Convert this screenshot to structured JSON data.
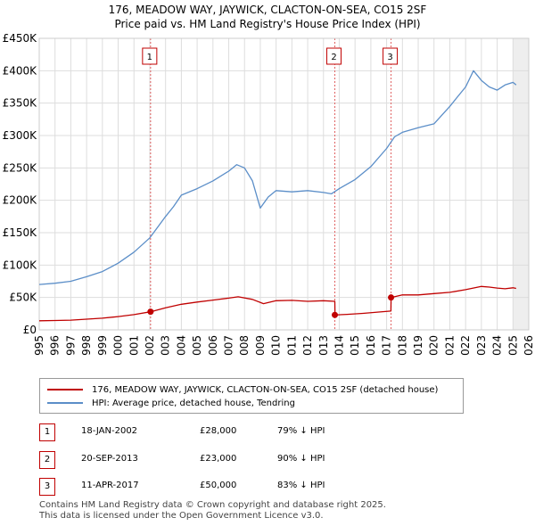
{
  "chart_data": {
    "type": "line",
    "title": "176, MEADOW WAY, JAYWICK, CLACTON-ON-SEA, CO15 2SF",
    "subtitle": "Price paid vs. HM Land Registry's House Price Index (HPI)",
    "x_range": [
      1995,
      2026
    ],
    "y_range": [
      0,
      450000
    ],
    "x_ticks": [
      "1995",
      "1996",
      "1997",
      "1998",
      "1999",
      "2000",
      "2001",
      "2002",
      "2003",
      "2004",
      "2005",
      "2006",
      "2007",
      "2008",
      "2009",
      "2010",
      "2011",
      "2012",
      "2013",
      "2014",
      "2015",
      "2016",
      "2017",
      "2018",
      "2019",
      "2020",
      "2021",
      "2022",
      "2023",
      "2024",
      "2025",
      "2026"
    ],
    "y_ticks": [
      {
        "value": 0,
        "label": "£0"
      },
      {
        "value": 50000,
        "label": "£50K"
      },
      {
        "value": 100000,
        "label": "£100K"
      },
      {
        "value": 150000,
        "label": "£150K"
      },
      {
        "value": 200000,
        "label": "£200K"
      },
      {
        "value": 250000,
        "label": "£250K"
      },
      {
        "value": 300000,
        "label": "£300K"
      },
      {
        "value": 350000,
        "label": "£350K"
      },
      {
        "value": 400000,
        "label": "£400K"
      },
      {
        "value": 450000,
        "label": "£450K"
      }
    ],
    "grid": true,
    "series": [
      {
        "name": "176, MEADOW WAY, JAYWICK, CLACTON-ON-SEA, CO15 2SF (detached house)",
        "color": "#c00000",
        "points": [
          [
            1995.0,
            14000
          ],
          [
            1996.0,
            14500
          ],
          [
            1997.0,
            15000
          ],
          [
            1998.0,
            16500
          ],
          [
            1999.0,
            18000
          ],
          [
            2000.0,
            20500
          ],
          [
            2001.0,
            23500
          ],
          [
            2002.05,
            28000
          ],
          [
            2003.0,
            34000
          ],
          [
            2004.0,
            39500
          ],
          [
            2005.0,
            43000
          ],
          [
            2006.0,
            46000
          ],
          [
            2007.0,
            49000
          ],
          [
            2007.6,
            51000
          ],
          [
            2008.5,
            47000
          ],
          [
            2009.2,
            40500
          ],
          [
            2010.0,
            45000
          ],
          [
            2011.0,
            45500
          ],
          [
            2012.0,
            44000
          ],
          [
            2013.0,
            45000
          ],
          [
            2013.72,
            44000
          ],
          [
            2013.73,
            23000
          ],
          [
            2014.5,
            24000
          ],
          [
            2015.5,
            25500
          ],
          [
            2016.5,
            27500
          ],
          [
            2017.27,
            29000
          ],
          [
            2017.28,
            50000
          ],
          [
            2018.0,
            54000
          ],
          [
            2019.0,
            54000
          ],
          [
            2020.0,
            56000
          ],
          [
            2021.0,
            58000
          ],
          [
            2022.0,
            62000
          ],
          [
            2023.0,
            67000
          ],
          [
            2023.5,
            66000
          ],
          [
            2024.0,
            64500
          ],
          [
            2024.5,
            63500
          ],
          [
            2025.0,
            65000
          ],
          [
            2025.2,
            64000
          ]
        ]
      },
      {
        "name": "HPI: Average price, detached house, Tendring",
        "color": "#5b8ec8",
        "points": [
          [
            1995.0,
            70000
          ],
          [
            1996.0,
            72000
          ],
          [
            1997.0,
            75000
          ],
          [
            1998.0,
            82000
          ],
          [
            1999.0,
            90000
          ],
          [
            2000.0,
            103000
          ],
          [
            2001.0,
            120000
          ],
          [
            2002.0,
            142000
          ],
          [
            2003.0,
            175000
          ],
          [
            2003.5,
            190000
          ],
          [
            2004.0,
            208000
          ],
          [
            2005.0,
            218000
          ],
          [
            2006.0,
            230000
          ],
          [
            2007.0,
            245000
          ],
          [
            2007.5,
            255000
          ],
          [
            2008.0,
            250000
          ],
          [
            2008.5,
            230000
          ],
          [
            2009.0,
            188000
          ],
          [
            2009.5,
            205000
          ],
          [
            2010.0,
            215000
          ],
          [
            2011.0,
            213000
          ],
          [
            2012.0,
            215000
          ],
          [
            2013.0,
            212000
          ],
          [
            2013.5,
            210000
          ],
          [
            2014.0,
            218000
          ],
          [
            2015.0,
            232000
          ],
          [
            2016.0,
            252000
          ],
          [
            2017.0,
            280000
          ],
          [
            2017.5,
            298000
          ],
          [
            2018.0,
            305000
          ],
          [
            2019.0,
            312000
          ],
          [
            2020.0,
            318000
          ],
          [
            2021.0,
            345000
          ],
          [
            2021.5,
            360000
          ],
          [
            2022.0,
            375000
          ],
          [
            2022.5,
            400000
          ],
          [
            2023.0,
            385000
          ],
          [
            2023.5,
            375000
          ],
          [
            2024.0,
            370000
          ],
          [
            2024.5,
            378000
          ],
          [
            2025.0,
            382000
          ],
          [
            2025.2,
            378000
          ]
        ]
      }
    ],
    "markers": [
      {
        "label": "1",
        "x": 2002.05,
        "y": 28000
      },
      {
        "label": "2",
        "x": 2013.72,
        "y": 23000
      },
      {
        "label": "3",
        "x": 2017.28,
        "y": 50000
      }
    ],
    "projection_start": 2025.0
  },
  "legend": {
    "property": "176, MEADOW WAY, JAYWICK, CLACTON-ON-SEA, CO15 2SF (detached house)",
    "hpi": "HPI: Average price, detached house, Tendring",
    "property_color": "#c00000",
    "hpi_color": "#5b8ec8"
  },
  "transactions": [
    {
      "num": "1",
      "date": "18-JAN-2002",
      "price": "£28,000",
      "hpi": "79% ↓ HPI"
    },
    {
      "num": "2",
      "date": "20-SEP-2013",
      "price": "£23,000",
      "hpi": "90% ↓ HPI"
    },
    {
      "num": "3",
      "date": "11-APR-2017",
      "price": "£50,000",
      "hpi": "83% ↓ HPI"
    }
  ],
  "footer": {
    "line1": "Contains HM Land Registry data © Crown copyright and database right 2025.",
    "line2": "This data is licensed under the Open Government Licence v3.0."
  }
}
